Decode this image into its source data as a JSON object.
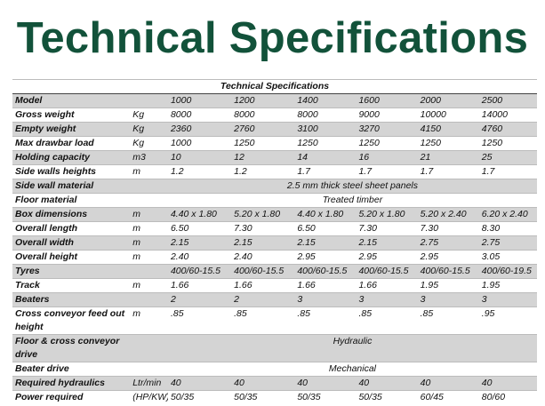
{
  "title": "Technical Specifications",
  "table": {
    "caption": "Technical Specifications",
    "rows": [
      {
        "label": "Model",
        "unit": "",
        "values": [
          "1000",
          "1200",
          "1400",
          "1600",
          "2000",
          "2500"
        ]
      },
      {
        "label": "Gross weight",
        "unit": "Kg",
        "values": [
          "8000",
          "8000",
          "8000",
          "9000",
          "10000",
          "14000"
        ]
      },
      {
        "label": "Empty weight",
        "unit": "Kg",
        "values": [
          "2360",
          "2760",
          "3100",
          "3270",
          "4150",
          "4760"
        ]
      },
      {
        "label": "Max drawbar load",
        "unit": "Kg",
        "values": [
          "1000",
          "1250",
          "1250",
          "1250",
          "1250",
          "1250"
        ]
      },
      {
        "label": "Holding capacity",
        "unit": "m3",
        "values": [
          "10",
          "12",
          "14",
          "16",
          "21",
          "25"
        ]
      },
      {
        "label": "Side walls heights",
        "unit": "m",
        "values": [
          "1.2",
          "1.2",
          "1.7",
          "1.7",
          "1.7",
          "1.7"
        ]
      },
      {
        "label": "Side wall material",
        "unit": "",
        "span": "2.5 mm thick steel sheet panels"
      },
      {
        "label": "Floor material",
        "unit": "",
        "span": "Treated timber"
      },
      {
        "label": "Box dimensions",
        "unit": "m",
        "values": [
          "4.40 x 1.80",
          "5.20 x 1.80",
          "4.40 x 1.80",
          "5.20 x 1.80",
          "5.20 x 2.40",
          "6.20 x 2.40"
        ]
      },
      {
        "label": "Overall length",
        "unit": "m",
        "values": [
          "6.50",
          "7.30",
          "6.50",
          "7.30",
          "7.30",
          "8.30"
        ]
      },
      {
        "label": "Overall width",
        "unit": "m",
        "values": [
          "2.15",
          "2.15",
          "2.15",
          "2.15",
          "2.75",
          "2.75"
        ]
      },
      {
        "label": "Overall height",
        "unit": "m",
        "values": [
          "2.40",
          "2.40",
          "2.95",
          "2.95",
          "2.95",
          "3.05"
        ]
      },
      {
        "label": "Tyres",
        "unit": "",
        "values": [
          "400/60-15.5",
          "400/60-15.5",
          "400/60-15.5",
          "400/60-15.5",
          "400/60-15.5",
          "400/60-19.5"
        ]
      },
      {
        "label": "Track",
        "unit": "m",
        "values": [
          "1.66",
          "1.66",
          "1.66",
          "1.66",
          "1.95",
          "1.95"
        ]
      },
      {
        "label": "Beaters",
        "unit": "",
        "values": [
          "2",
          "2",
          "3",
          "3",
          "3",
          "3"
        ]
      },
      {
        "label": "Cross conveyor feed out height",
        "unit": "m",
        "values": [
          ".85",
          ".85",
          ".85",
          ".85",
          ".85",
          ".95"
        ]
      },
      {
        "label": "Floor & cross conveyor drive",
        "unit": "",
        "span": "Hydraulic"
      },
      {
        "label": "Beater drive",
        "unit": "",
        "span": "Mechanical"
      },
      {
        "label": "Required hydraulics",
        "unit": "Ltr/min",
        "values": [
          "40",
          "40",
          "40",
          "40",
          "40",
          "40"
        ]
      },
      {
        "label": "Power required",
        "unit": "(HP/KW)",
        "values": [
          "50/35",
          "50/35",
          "50/35",
          "50/35",
          "60/45",
          "80/60"
        ]
      }
    ]
  }
}
